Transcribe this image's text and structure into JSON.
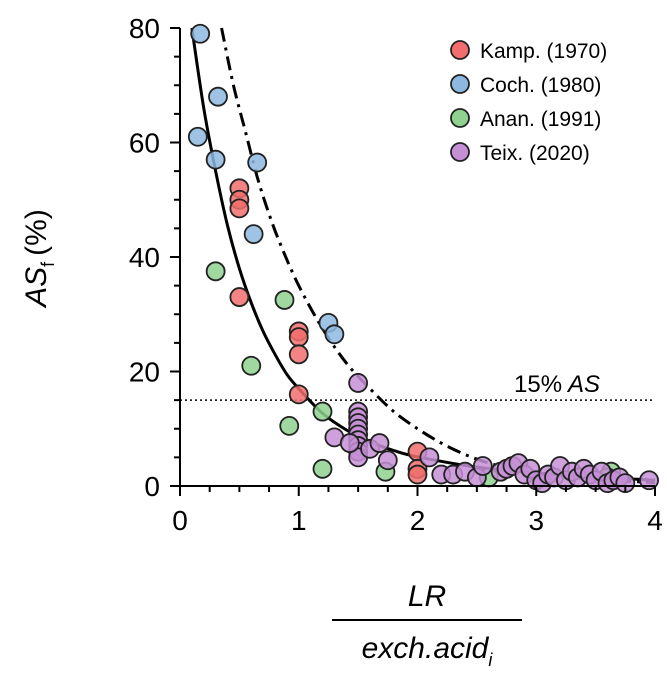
{
  "chart_data": {
    "type": "scatter",
    "title": "",
    "xlabel": {
      "numerator": "LR",
      "denominator_main": "exch.acid",
      "denominator_sub": "i"
    },
    "ylabel": {
      "main": "AS",
      "sub": "f",
      "unit": "(%)"
    },
    "xlim": [
      0,
      4
    ],
    "ylim": [
      0,
      80
    ],
    "x_ticks": [
      "0",
      "1",
      "2",
      "3",
      "4"
    ],
    "y_ticks": [
      "0",
      "20",
      "40",
      "60",
      "80"
    ],
    "legend_position": "top-right",
    "reference_line": {
      "y": 15,
      "label_prefix": "15%",
      "label_italic": "AS"
    },
    "curves": [
      {
        "style": "solid",
        "x": [
          0.1,
          0.2,
          0.3,
          0.4,
          0.5,
          0.6,
          0.7,
          0.8,
          0.9,
          1.0,
          1.2,
          1.4,
          1.6,
          1.8,
          2.0,
          2.5,
          3.0,
          3.5,
          4.0
        ],
        "y": [
          80,
          66,
          55,
          45.5,
          38,
          32,
          27,
          23,
          19.5,
          17,
          12.7,
          9.8,
          7.7,
          6.2,
          5.1,
          3.3,
          2.3,
          1.6,
          1.0
        ]
      },
      {
        "style": "dashdot",
        "x": [
          0.35,
          0.45,
          0.55,
          0.65,
          0.75,
          0.85,
          1.0,
          1.2,
          1.4,
          1.6,
          1.8,
          2.0,
          2.2,
          2.4,
          2.6,
          2.8,
          3.0,
          3.3,
          3.7,
          4.0
        ],
        "y": [
          80,
          70,
          62,
          54,
          47.5,
          42,
          35,
          27.5,
          21.5,
          17,
          13,
          10,
          7.5,
          5.5,
          4.0,
          3.0,
          2.2,
          1.5,
          0.9,
          0.6
        ]
      }
    ],
    "series": [
      {
        "name": "Kamp. (1970)",
        "color": "#f26d6d",
        "points": [
          [
            0.5,
            52
          ],
          [
            0.5,
            50
          ],
          [
            0.5,
            48.5
          ],
          [
            0.5,
            33
          ],
          [
            1.0,
            27
          ],
          [
            1.0,
            26
          ],
          [
            1.0,
            23
          ],
          [
            1.0,
            16
          ],
          [
            2.0,
            6
          ],
          [
            2.0,
            3
          ],
          [
            2.0,
            2
          ]
        ]
      },
      {
        "name": "Coch. (1980)",
        "color": "#8db8e0",
        "points": [
          [
            0.17,
            79
          ],
          [
            0.15,
            61
          ],
          [
            0.32,
            68
          ],
          [
            0.3,
            57
          ],
          [
            0.65,
            56.5
          ],
          [
            0.62,
            44
          ],
          [
            1.25,
            28.5
          ],
          [
            1.3,
            26.5
          ]
        ]
      },
      {
        "name": "Anan. (1991)",
        "color": "#8fd28f",
        "points": [
          [
            0.3,
            37.5
          ],
          [
            0.6,
            21
          ],
          [
            0.88,
            32.5
          ],
          [
            0.92,
            10.5
          ],
          [
            1.2,
            13
          ],
          [
            1.2,
            3
          ],
          [
            1.73,
            2.5
          ],
          [
            2.6,
            1.5
          ],
          [
            3.63,
            2.5
          ],
          [
            3.6,
            1.5
          ]
        ]
      },
      {
        "name": "Teix. (2020)",
        "color": "#c58fd6",
        "points": [
          [
            1.5,
            18
          ],
          [
            1.5,
            13
          ],
          [
            1.5,
            12
          ],
          [
            1.5,
            11
          ],
          [
            1.5,
            10
          ],
          [
            1.5,
            9
          ],
          [
            1.5,
            8
          ],
          [
            1.5,
            7
          ],
          [
            1.5,
            6
          ],
          [
            1.5,
            5
          ],
          [
            1.3,
            8.5
          ],
          [
            1.43,
            7.5
          ],
          [
            1.6,
            6.5
          ],
          [
            1.68,
            7.5
          ],
          [
            1.75,
            4.5
          ],
          [
            2.1,
            5
          ],
          [
            2.2,
            2
          ],
          [
            2.3,
            2
          ],
          [
            2.4,
            2.5
          ],
          [
            2.5,
            1.5
          ],
          [
            2.55,
            3.5
          ],
          [
            2.7,
            2.5
          ],
          [
            2.75,
            3
          ],
          [
            2.8,
            3.5
          ],
          [
            2.85,
            4
          ],
          [
            2.9,
            2
          ],
          [
            2.95,
            3
          ],
          [
            3.0,
            1
          ],
          [
            3.05,
            0.5
          ],
          [
            3.1,
            2
          ],
          [
            3.15,
            1.5
          ],
          [
            3.2,
            3.5
          ],
          [
            3.25,
            1
          ],
          [
            3.3,
            2.5
          ],
          [
            3.35,
            1.5
          ],
          [
            3.4,
            3
          ],
          [
            3.45,
            2
          ],
          [
            3.5,
            1
          ],
          [
            3.55,
            2.5
          ],
          [
            3.6,
            0.5
          ],
          [
            3.65,
            1
          ],
          [
            3.7,
            1.5
          ],
          [
            3.75,
            0.5
          ],
          [
            3.95,
            1
          ]
        ]
      }
    ]
  }
}
